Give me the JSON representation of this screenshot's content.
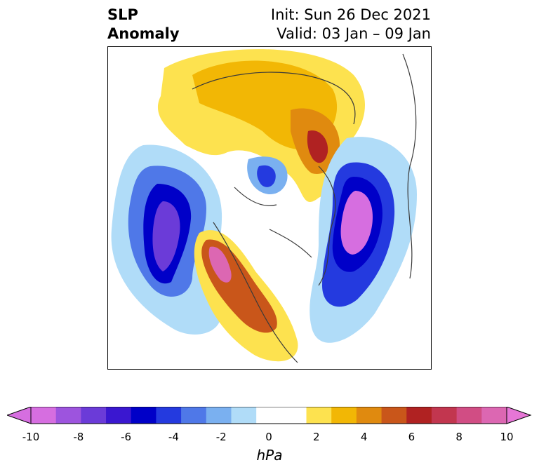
{
  "title": {
    "left_line1": "SLP",
    "left_line2": "Anomaly",
    "right_line1": "Init: Sun 26 Dec 2021",
    "right_line2": "Valid: 03 Jan – 09 Jan"
  },
  "colorbar": {
    "unit": "hPa",
    "ticks": [
      "-10",
      "-8",
      "-6",
      "-4",
      "-2",
      "0",
      "2",
      "4",
      "6",
      "8",
      "10"
    ],
    "colors": [
      "#d66ee0",
      "#9d54de",
      "#6b3bd8",
      "#3a17d0",
      "#0000c8",
      "#243adf",
      "#4f78e8",
      "#7ab0f0",
      "#b0dcf8",
      "#ffffff",
      "#ffffff",
      "#fde24f",
      "#f2b705",
      "#e08a0f",
      "#c9561a",
      "#b02222",
      "#c2364f",
      "#d14d84",
      "#dc67b2"
    ],
    "extend_low_color": "#d66ee0",
    "extend_high_color": "#e676d6"
  }
}
